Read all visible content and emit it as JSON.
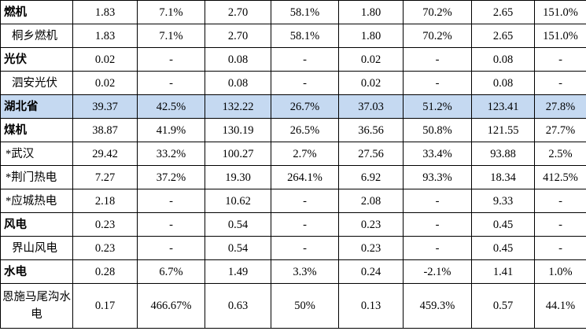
{
  "colors": {
    "highlight_row": "#c5d9f1",
    "border": "#000000"
  },
  "rows": [
    {
      "name": "燃机",
      "kind": "category",
      "values": [
        "1.83",
        "7.1%",
        "2.70",
        "58.1%",
        "1.80",
        "70.2%",
        "2.65",
        "151.0%"
      ]
    },
    {
      "name": "桐乡燃机",
      "kind": "sub",
      "values": [
        "1.83",
        "7.1%",
        "2.70",
        "58.1%",
        "1.80",
        "70.2%",
        "2.65",
        "151.0%"
      ]
    },
    {
      "name": "光伏",
      "kind": "category",
      "values": [
        "0.02",
        "-",
        "0.08",
        "-",
        "0.02",
        "-",
        "0.08",
        "-"
      ]
    },
    {
      "name": "泗安光伏",
      "kind": "sub",
      "values": [
        "0.02",
        "-",
        "0.08",
        "-",
        "0.02",
        "-",
        "0.08",
        "-"
      ]
    },
    {
      "name": "湖北省",
      "kind": "category highlight",
      "values": [
        "39.37",
        "42.5%",
        "132.22",
        "26.7%",
        "37.03",
        "51.2%",
        "123.41",
        "27.8%"
      ]
    },
    {
      "name": "煤机",
      "kind": "category",
      "values": [
        "38.87",
        "41.9%",
        "130.19",
        "26.5%",
        "36.56",
        "50.8%",
        "121.55",
        "27.7%"
      ]
    },
    {
      "name": "*武汉",
      "kind": "sub star",
      "values": [
        "29.42",
        "33.2%",
        "100.27",
        "2.7%",
        "27.56",
        "33.4%",
        "93.88",
        "2.5%"
      ]
    },
    {
      "name": "*荆门热电",
      "kind": "sub star",
      "values": [
        "7.27",
        "37.2%",
        "19.30",
        "264.1%",
        "6.92",
        "93.3%",
        "18.34",
        "412.5%"
      ]
    },
    {
      "name": "*应城热电",
      "kind": "sub star",
      "values": [
        "2.18",
        "-",
        "10.62",
        "-",
        "2.08",
        "-",
        "9.33",
        "-"
      ]
    },
    {
      "name": "风电",
      "kind": "category",
      "values": [
        "0.23",
        "-",
        "0.54",
        "-",
        "0.23",
        "-",
        "0.45",
        "-"
      ]
    },
    {
      "name": "界山风电",
      "kind": "sub",
      "values": [
        "0.23",
        "-",
        "0.54",
        "-",
        "0.23",
        "-",
        "0.45",
        "-"
      ]
    },
    {
      "name": "水电",
      "kind": "category",
      "values": [
        "0.28",
        "6.7%",
        "1.49",
        "3.3%",
        "0.24",
        "-2.1%",
        "1.41",
        "1.0%"
      ]
    },
    {
      "name": "恩施马尾沟水电",
      "kind": "sub tall",
      "values": [
        "0.17",
        "466.67%",
        "0.63",
        "50%",
        "0.13",
        "459.3%",
        "0.57",
        "44.1%"
      ]
    }
  ]
}
